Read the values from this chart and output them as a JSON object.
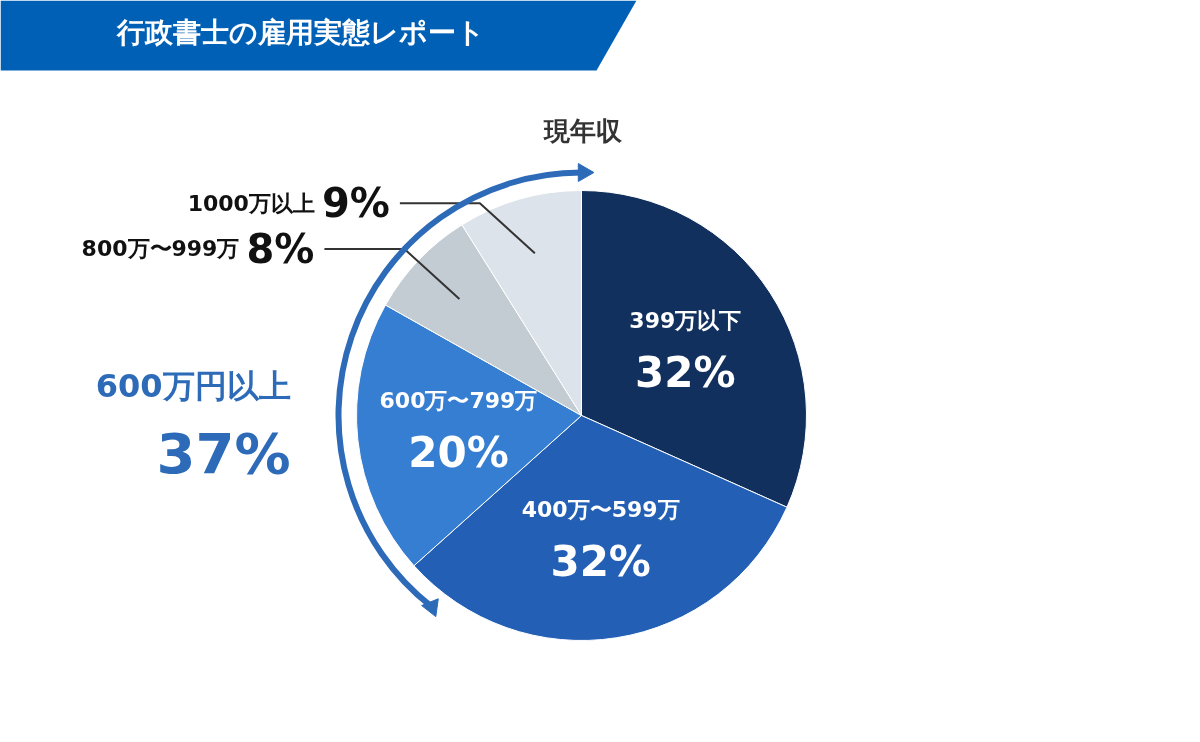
{
  "chart_data": {
    "type": "pie",
    "title": "行政書士の雇用実態レポート",
    "subtitle": "現年収",
    "categories": [
      "399万以下",
      "400万〜599万",
      "600万〜799万",
      "800万〜999万",
      "1000万以上"
    ],
    "values": [
      32,
      32,
      20,
      8,
      9
    ],
    "colors": [
      "#11305e",
      "#2360b5",
      "#367ed1",
      "#c3cbd3",
      "#dde3ea"
    ],
    "value_labels": [
      "32%",
      "32%",
      "20%",
      "8%",
      "9%"
    ],
    "annotations": [
      "600万円以上",
      "37%"
    ]
  }
}
